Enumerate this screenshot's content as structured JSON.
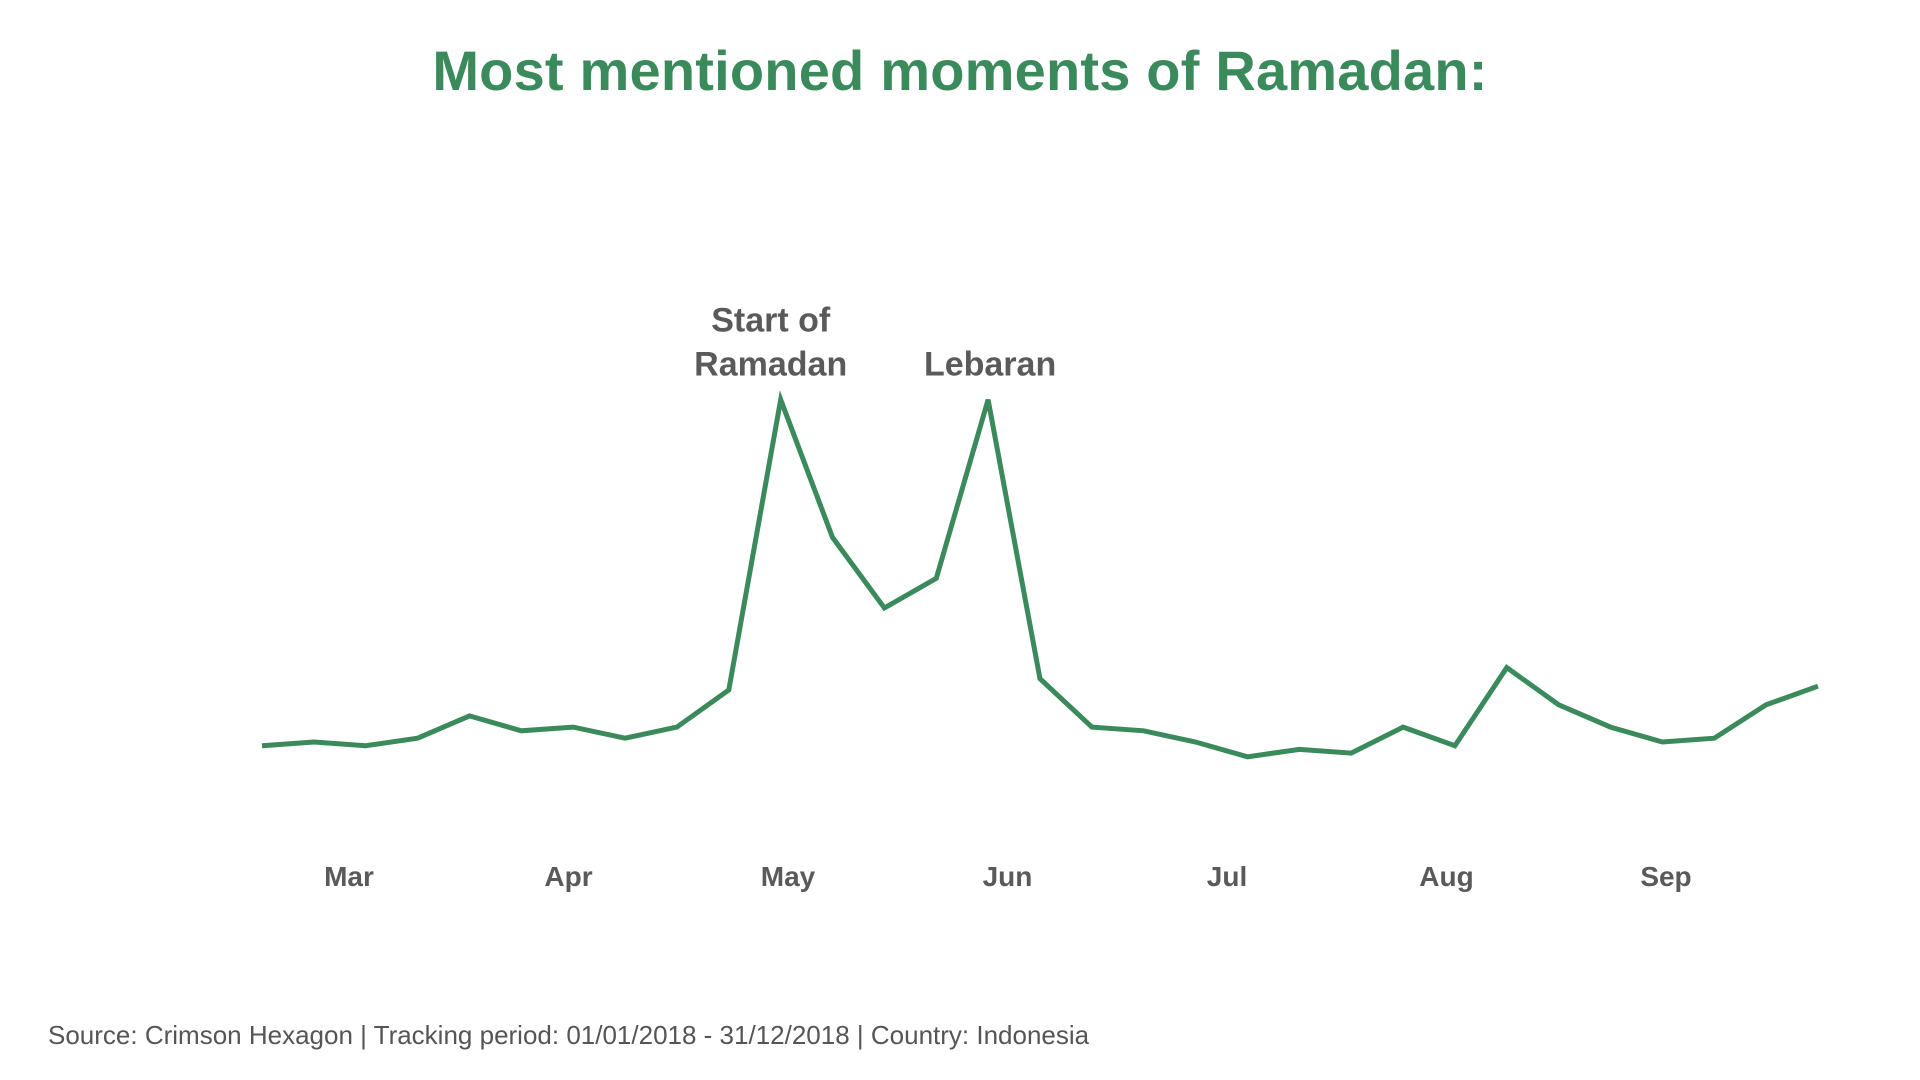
{
  "title": "Most mentioned moments of Ramadan:",
  "source": "Source:  Crimson Hexagon | Tracking period: 01/01/2018 - 31/12/2018 | Country: Indonesia",
  "colors": {
    "title": "#3a8a5c",
    "line": "#3a8a5c",
    "text": "#5a5a5a"
  },
  "chart_data": {
    "type": "line",
    "title": "Most mentioned moments of Ramadan:",
    "xlabel": "",
    "ylabel": "",
    "grid": false,
    "legend": "none",
    "y_axis_visible": false,
    "ylim": [
      0,
      100
    ],
    "x_tick_labels": [
      "Mar",
      "Apr",
      "May",
      "Jun",
      "Jul",
      "Aug",
      "Sep"
    ],
    "series": [
      {
        "values": [
          6,
          7,
          6,
          8,
          14,
          10,
          11,
          8,
          11,
          21,
          99,
          62,
          43,
          51,
          99,
          24,
          11,
          10,
          7,
          3,
          5,
          4,
          11,
          6,
          27,
          17,
          11,
          7,
          8,
          17,
          22
        ]
      }
    ],
    "annotations": [
      {
        "lines": [
          "Start of",
          "Ramadan"
        ],
        "point_index": 10
      },
      {
        "lines": [
          "Lebaran"
        ],
        "point_index": 14
      }
    ]
  }
}
